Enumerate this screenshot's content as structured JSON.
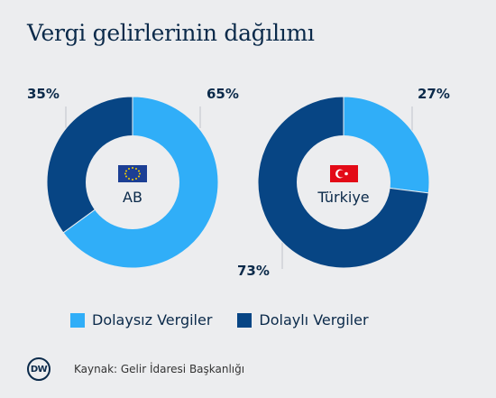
{
  "title": "Vergi gelirlerinin dağılımı",
  "colors": {
    "direct": "#30aef8",
    "indirect": "#074584",
    "text": "#0b2a4a"
  },
  "legend": {
    "direct": "Dolaysız Vergiler",
    "indirect": "Dolaylı Vergiler"
  },
  "source": "Kaynak: Gelir İdaresi Başkanlığı",
  "logo": "DW",
  "chart_data": [
    {
      "type": "pie",
      "center_label": "AB",
      "flag_icon": "eu-flag-icon",
      "slices": [
        {
          "series": "Dolaysız Vergiler",
          "value": 65,
          "label": "65%"
        },
        {
          "series": "Dolaylı Vergiler",
          "value": 35,
          "label": "35%"
        }
      ]
    },
    {
      "type": "pie",
      "center_label": "Türkiye",
      "flag_icon": "turkey-flag-icon",
      "slices": [
        {
          "series": "Dolaysız Vergiler",
          "value": 27,
          "label": "27%"
        },
        {
          "series": "Dolaylı Vergiler",
          "value": 73,
          "label": "73%"
        }
      ]
    }
  ]
}
